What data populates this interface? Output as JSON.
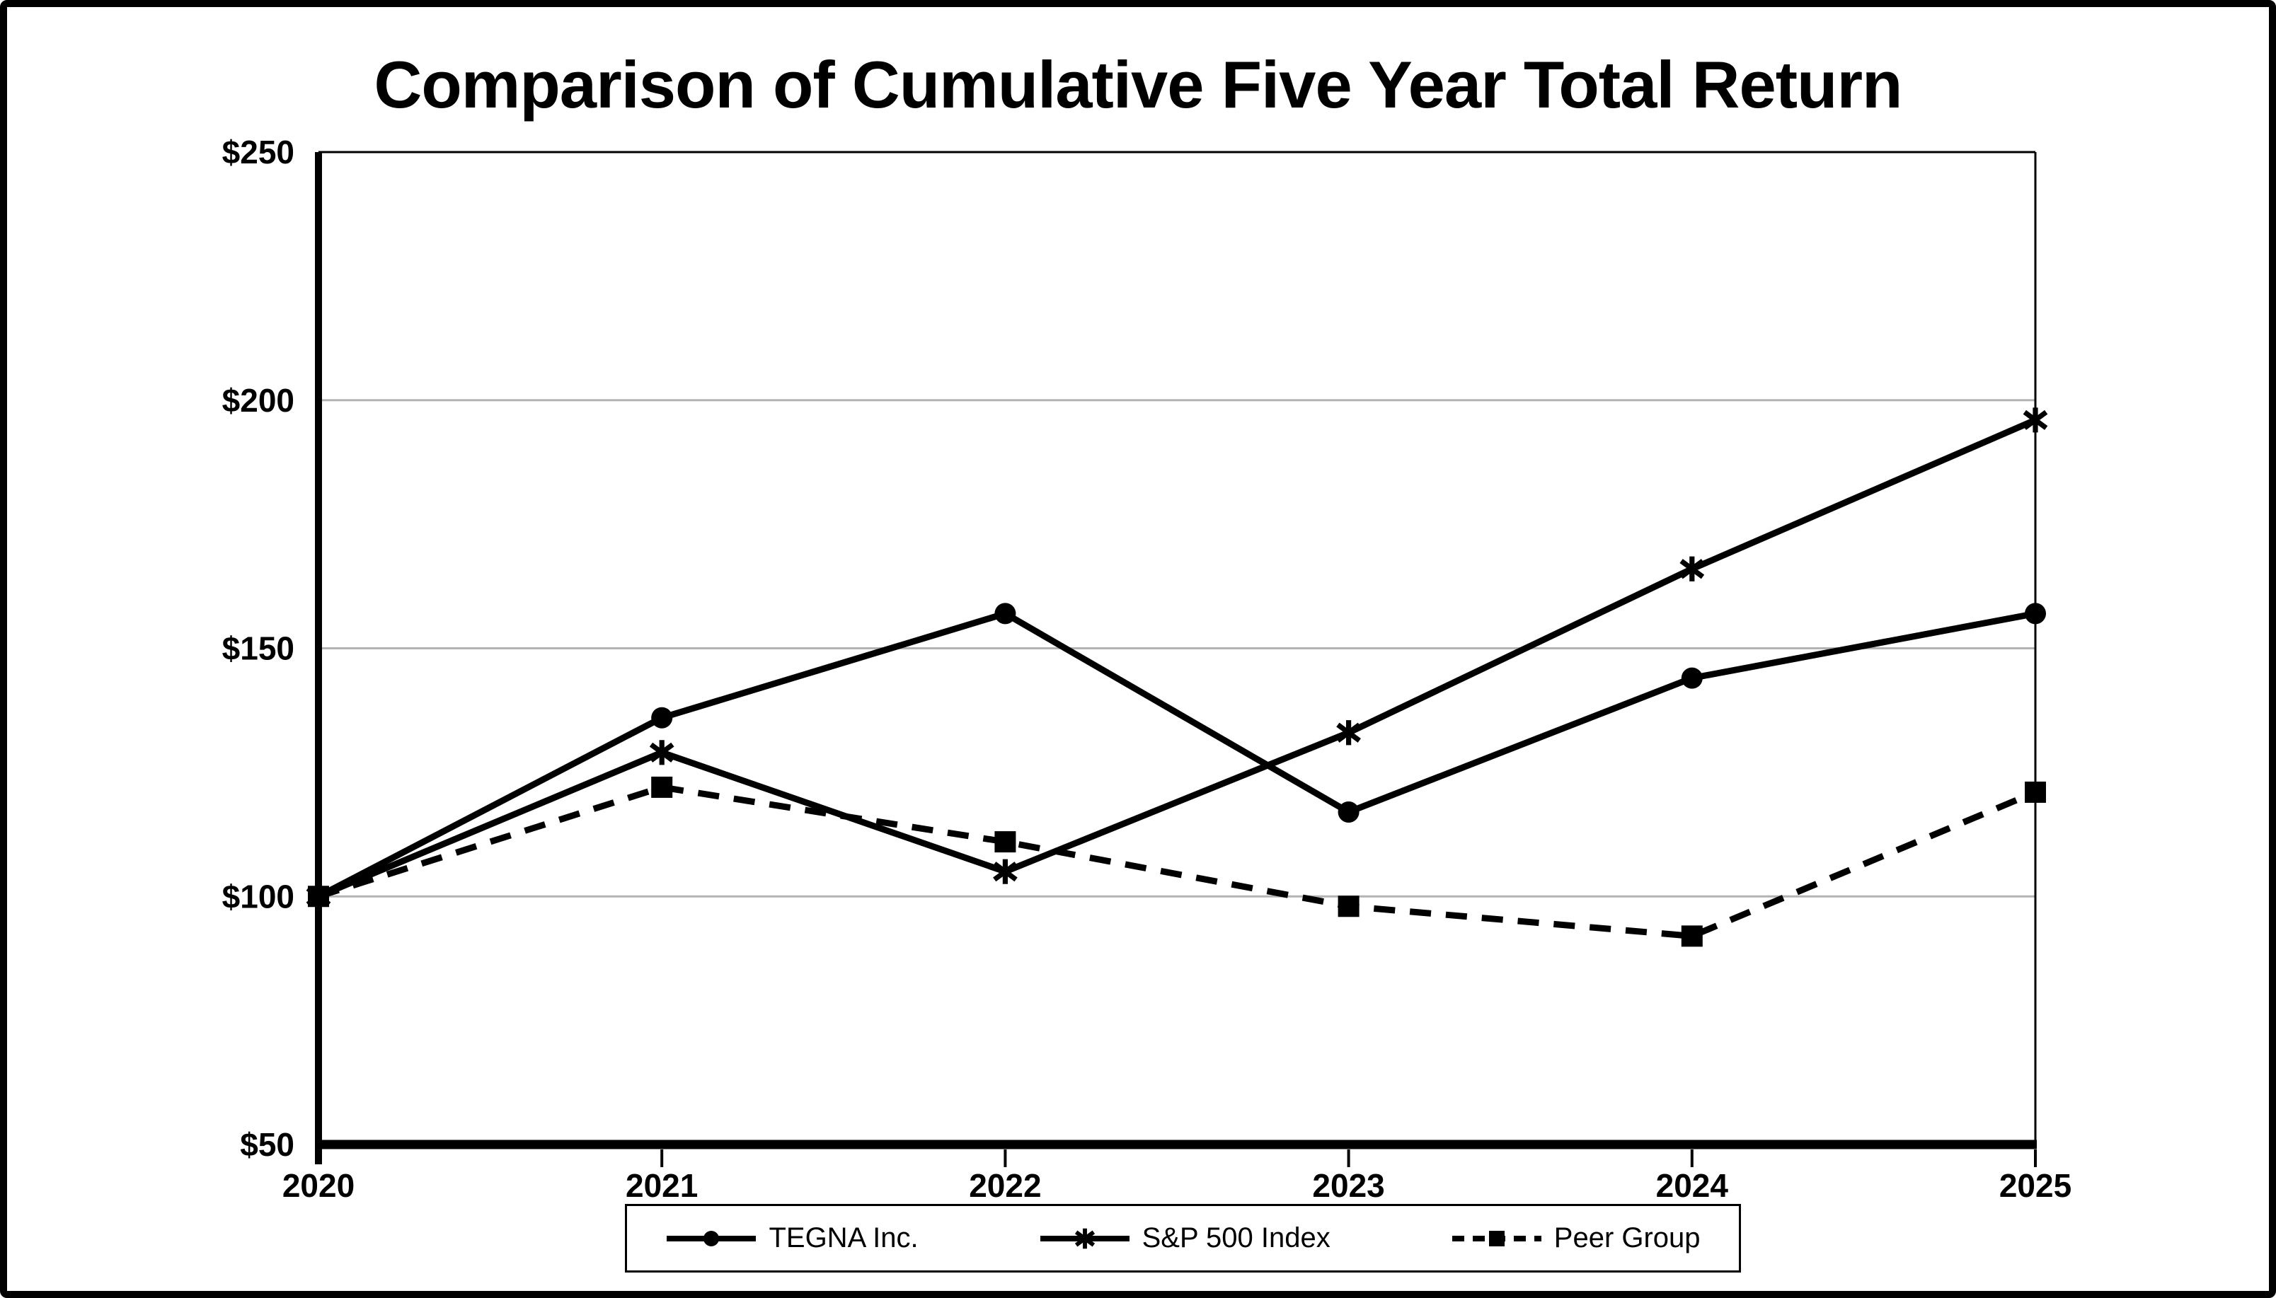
{
  "title": "Comparison of Cumulative Five Year Total Return",
  "colors": {
    "ink": "#000000",
    "grid": "#b3b3b3",
    "background": "#ffffff"
  },
  "chart_data": {
    "type": "line",
    "title": "Comparison of Cumulative Five Year Total Return",
    "categories": [
      "2020",
      "2021",
      "2022",
      "2023",
      "2024",
      "2025"
    ],
    "y_axis": {
      "tick_labels": [
        "$50",
        "$100",
        "$150",
        "$200",
        "$250"
      ],
      "tick_values": [
        50,
        100,
        150,
        200,
        250
      ],
      "ylim": [
        50,
        250
      ],
      "gridline_values": [
        100,
        150,
        200
      ]
    },
    "series": [
      {
        "name": "TEGNA Inc.",
        "marker": "circle",
        "line": "solid",
        "values": [
          100,
          136,
          157,
          117,
          144,
          157
        ]
      },
      {
        "name": "S&P 500 Index",
        "marker": "asterisk",
        "line": "solid",
        "values": [
          100,
          129,
          105,
          133,
          166,
          196
        ]
      },
      {
        "name": "Peer Group",
        "marker": "square",
        "line": "dashed",
        "values": [
          100,
          122,
          111,
          98,
          92,
          121
        ]
      }
    ],
    "legend_position": "bottom",
    "grid": "horizontal"
  }
}
